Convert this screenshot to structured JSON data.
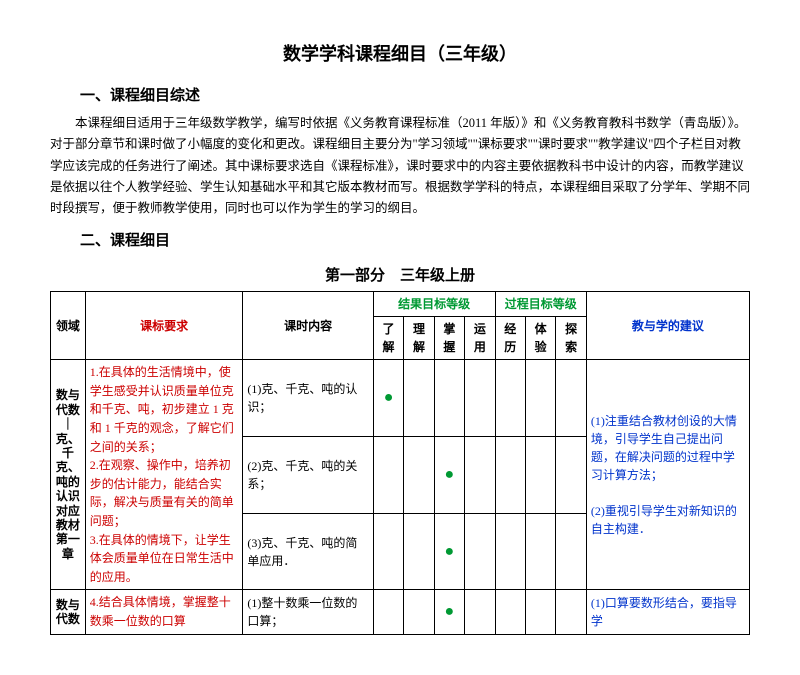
{
  "title": "数学学科课程细目（三年级）",
  "section1_heading": "一、课程细目综述",
  "section1_para": "本课程细目适用于三年级数学教学，编写时依据《义务教育课程标准（2011 年版）》和《义务教育教科书数学（青岛版）》。对于部分章节和课时做了小幅度的变化和更改。课程细目主要分为\"学习领域\"\"课标要求\"\"课时要求\"\"教学建议\"四个子栏目对教学应该完成的任务进行了阐述。其中课标要求选自《课程标准》，课时要求中的内容主要依据教科书中设计的内容，而教学建议是依据以往个人教学经验、学生认知基础水平和其它版本教材而写。根据数学学科的特点，本课程细目采取了分学年、学期不同时段撰写，便于教师教学使用，同时也可以作为学生的学习的纲目。",
  "section2_heading": "二、课程细目",
  "part_title": "第一部分　三年级上册",
  "headers": {
    "domain": "领域",
    "requirement": "课标要求",
    "lesson": "课时内容",
    "result_group": "结果目标等级",
    "process_group": "过程目标等级",
    "suggest": "教与学的建议",
    "levels": [
      "了解",
      "理解",
      "掌握",
      "运用",
      "经历",
      "体验",
      "探索"
    ]
  },
  "block1": {
    "domain": "数与代数｜克、千克、吨的认识　对应教材第一章",
    "requirement": "1.在具体的生活情境中，使学生感受并认识质量单位克和千克、吨，初步建立 1 克和 1 千克的观念，了解它们之间的关系；\n2.在观察、操作中，培养初步的估计能力，能结合实际，解决与质量有关的简单问题；\n3.在具体的情境下，让学生体会质量单位在日常生活中的应用。",
    "lessons": [
      {
        "name": "(1)克、千克、吨的认识；",
        "dot_col": 0
      },
      {
        "name": "(2)克、千克、吨的关系；",
        "dot_col": 2
      },
      {
        "name": "(3)克、千克、吨的简单应用．",
        "dot_col": 2
      }
    ],
    "suggest": "(1)注重结合教材创设的大情境，引导学生自己提出问题，在解决问题的过程中学习计算方法；\n\n(2)重视引导学生对新知识的自主构建．"
  },
  "block2": {
    "domain": "数与代数",
    "requirement": "4.结合具体情境，掌握整十数乘一位数的口算",
    "lesson": "(1)整十数乘一位数的口算；",
    "dot_col": 2,
    "suggest": "(1)口算要数形结合，要指导学"
  }
}
